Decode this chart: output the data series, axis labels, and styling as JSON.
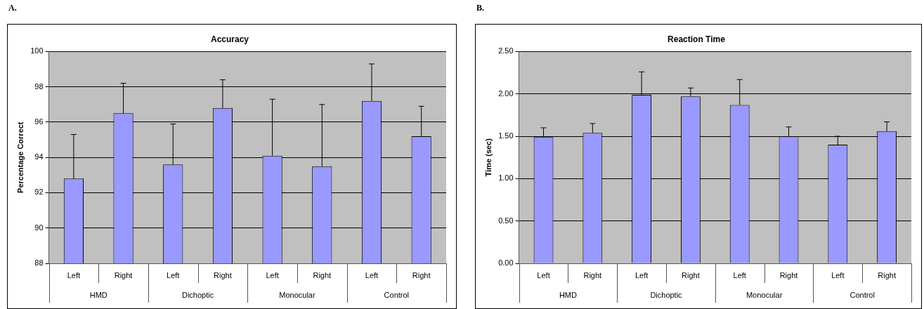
{
  "chart_data": [
    {
      "type": "bar",
      "title": "Accuracy",
      "ylabel": "Percentage Correct",
      "categories": [
        "Left",
        "Right",
        "Left",
        "Right",
        "Left",
        "Right",
        "Left",
        "Right"
      ],
      "values": [
        92.8,
        96.5,
        93.6,
        96.8,
        94.1,
        93.5,
        97.2,
        95.2
      ],
      "errors": [
        [
          92.8,
          95.3
        ],
        [
          96.5,
          98.2
        ],
        [
          93.6,
          95.9
        ],
        [
          96.8,
          98.4
        ],
        [
          94.1,
          97.3
        ],
        [
          93.5,
          97.0
        ],
        [
          97.2,
          99.3
        ],
        [
          95.2,
          96.9
        ]
      ],
      "color": "#9999ff",
      "ylim": [
        88,
        100
      ],
      "yticks": [
        88,
        90,
        92,
        94,
        96,
        98,
        100
      ],
      "grid": "y",
      "annotations": [
        "A.",
        "HMD",
        "Dichoptic",
        "Monocular",
        "Control"
      ]
    },
    {
      "type": "bar",
      "title": "Reaction Time",
      "ylabel": "Time (sec)",
      "categories": [
        "Left",
        "Right",
        "Left",
        "Right",
        "Left",
        "Right",
        "Left",
        "Right"
      ],
      "values": [
        1.49,
        1.54,
        1.99,
        1.97,
        1.87,
        1.5,
        1.4,
        1.56
      ],
      "errors": [
        [
          1.49,
          1.6
        ],
        [
          1.54,
          1.65
        ],
        [
          1.99,
          2.26
        ],
        [
          1.97,
          2.07
        ],
        [
          1.87,
          2.17
        ],
        [
          1.5,
          1.61
        ],
        [
          1.4,
          1.5
        ],
        [
          1.56,
          1.67
        ]
      ],
      "color": "#9999ff",
      "ylim": [
        0,
        2.5
      ],
      "yticks": [
        {
          "value": 0,
          "label": "0.00"
        },
        {
          "value": 0.5,
          "label": "0.50"
        },
        {
          "value": 1,
          "label": "1.00"
        },
        {
          "value": 1.5,
          "label": "1.50"
        },
        {
          "value": 2,
          "label": "2.00"
        },
        {
          "value": 2.5,
          "label": "2.50"
        }
      ],
      "grid": "y",
      "annotations": [
        "B.",
        "HMD",
        "Dichoptic",
        "Monocular",
        "Control"
      ]
    }
  ]
}
